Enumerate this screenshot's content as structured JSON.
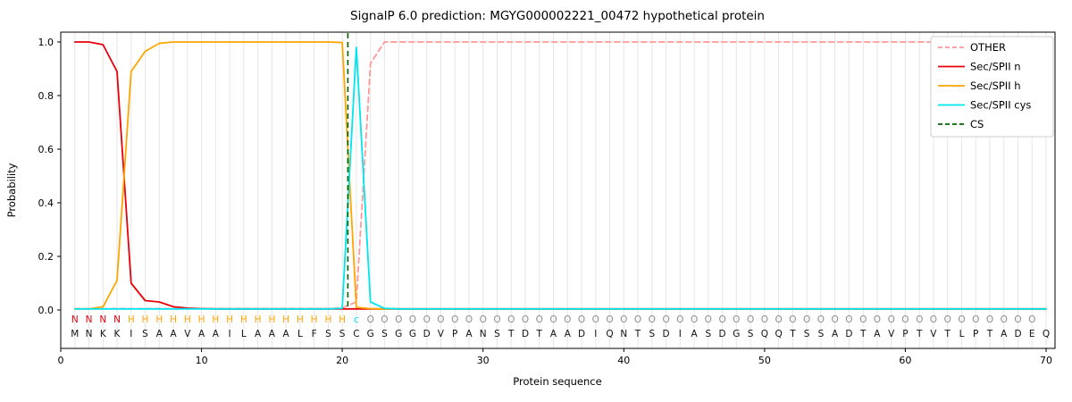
{
  "chart_data": {
    "type": "line",
    "title": "SignalP 6.0 prediction: MGYG000002221_00472 hypothetical protein",
    "xlabel": "Protein sequence",
    "ylabel": "Probability",
    "xlim": [
      0,
      70.6
    ],
    "ylim": [
      -0.15,
      1.04
    ],
    "grid": true,
    "legend_position": "upper right",
    "xticks": [
      0,
      10,
      20,
      30,
      40,
      50,
      60,
      70
    ],
    "yticks": [
      "0.0",
      "0.2",
      "0.4",
      "0.6",
      "0.8",
      "1.0"
    ],
    "sequence": "MNKKISAAVAAILAAALFSSCGSGGDVPANSTDTAADIQNTSDIASDGSQQTSSADTAVPTVTLPTADEQ",
    "annotation": "NNNNHHHHHHHHHHHHHHHHcOOOOOOOOOOOOOOOOOOOOOOOOOOOOOOOOOOOOOOOOOOOOOOOO",
    "annotation_colors": {
      "N": "#e8000b",
      "H": "#ffa500",
      "c": "#00e5ee",
      "O": "#8c8c8c"
    },
    "cs_position": 20.4,
    "cs_color": "#006400",
    "series": [
      {
        "name": "OTHER",
        "color": "#ff9896",
        "dash": true,
        "values": [
          0.005,
          0.005,
          0.005,
          0.005,
          0.005,
          0.005,
          0.005,
          0.005,
          0.005,
          0.005,
          0.005,
          0.005,
          0.005,
          0.005,
          0.005,
          0.005,
          0.005,
          0.005,
          0.005,
          0.008,
          0.03,
          0.92,
          1.0,
          1.0,
          1.0,
          1.0,
          1.0,
          1.0,
          1.0,
          1.0,
          1.0,
          1.0,
          1.0,
          1.0,
          1.0,
          1.0,
          1.0,
          1.0,
          1.0,
          1.0,
          1.0,
          1.0,
          1.0,
          1.0,
          1.0,
          1.0,
          1.0,
          1.0,
          1.0,
          1.0,
          1.0,
          1.0,
          1.0,
          1.0,
          1.0,
          1.0,
          1.0,
          1.0,
          1.0,
          1.0,
          1.0,
          1.0,
          1.0,
          1.0,
          1.0,
          1.0,
          1.0,
          1.0,
          1.0,
          1.0
        ]
      },
      {
        "name": "Sec/SPII n",
        "color": "#e8000b",
        "dash": false,
        "values": [
          1.0,
          1.0,
          0.99,
          0.89,
          0.1,
          0.035,
          0.03,
          0.012,
          0.007,
          0.005,
          0.004,
          0.004,
          0.004,
          0.004,
          0.004,
          0.004,
          0.004,
          0.004,
          0.004,
          0.004,
          0.004,
          0.004,
          0.004,
          0.004,
          0.004,
          0.004,
          0.004,
          0.004,
          0.004,
          0.004,
          0.004,
          0.004,
          0.004,
          0.004,
          0.004,
          0.004,
          0.004,
          0.004,
          0.004,
          0.004,
          0.004,
          0.004,
          0.004,
          0.004,
          0.004,
          0.004,
          0.004,
          0.004,
          0.004,
          0.004,
          0.004,
          0.004,
          0.004,
          0.004,
          0.004,
          0.004,
          0.004,
          0.004,
          0.004,
          0.004,
          0.004,
          0.004,
          0.004,
          0.004,
          0.004,
          0.004,
          0.004,
          0.004,
          0.004,
          0.004
        ]
      },
      {
        "name": "Sec/SPII h",
        "color": "#ffa500",
        "dash": false,
        "values": [
          0.004,
          0.004,
          0.012,
          0.11,
          0.89,
          0.965,
          0.995,
          1.0,
          1.0,
          1.0,
          1.0,
          1.0,
          1.0,
          1.0,
          1.0,
          1.0,
          1.0,
          1.0,
          1.0,
          0.998,
          0.01,
          0.005,
          0.004,
          0.004,
          0.004,
          0.004,
          0.004,
          0.004,
          0.004,
          0.004,
          0.004,
          0.004,
          0.004,
          0.004,
          0.004,
          0.004,
          0.004,
          0.004,
          0.004,
          0.004,
          0.004,
          0.004,
          0.004,
          0.004,
          0.004,
          0.004,
          0.004,
          0.004,
          0.004,
          0.004,
          0.004,
          0.004,
          0.004,
          0.004,
          0.004,
          0.004,
          0.004,
          0.004,
          0.004,
          0.004,
          0.004,
          0.004,
          0.004,
          0.004,
          0.004,
          0.004,
          0.004,
          0.004,
          0.004,
          0.004
        ]
      },
      {
        "name": "Sec/SPII cys",
        "color": "#00e5ee",
        "dash": false,
        "values": [
          0.004,
          0.004,
          0.004,
          0.004,
          0.004,
          0.004,
          0.004,
          0.004,
          0.004,
          0.004,
          0.004,
          0.004,
          0.004,
          0.004,
          0.004,
          0.004,
          0.004,
          0.004,
          0.004,
          0.006,
          0.98,
          0.03,
          0.006,
          0.004,
          0.004,
          0.004,
          0.004,
          0.004,
          0.004,
          0.004,
          0.004,
          0.004,
          0.004,
          0.004,
          0.004,
          0.004,
          0.004,
          0.004,
          0.004,
          0.004,
          0.004,
          0.004,
          0.004,
          0.004,
          0.004,
          0.004,
          0.004,
          0.004,
          0.004,
          0.004,
          0.004,
          0.004,
          0.004,
          0.004,
          0.004,
          0.004,
          0.004,
          0.004,
          0.004,
          0.004,
          0.004,
          0.004,
          0.004,
          0.004,
          0.004,
          0.004,
          0.004,
          0.004,
          0.004,
          0.004
        ]
      }
    ],
    "legend": [
      {
        "label": "OTHER",
        "color": "#ff9896",
        "dash": true
      },
      {
        "label": "Sec/SPII n",
        "color": "#e8000b",
        "dash": false
      },
      {
        "label": "Sec/SPII h",
        "color": "#ffa500",
        "dash": false
      },
      {
        "label": "Sec/SPII cys",
        "color": "#00e5ee",
        "dash": false
      },
      {
        "label": "CS",
        "color": "#006400",
        "dash": true
      }
    ]
  }
}
